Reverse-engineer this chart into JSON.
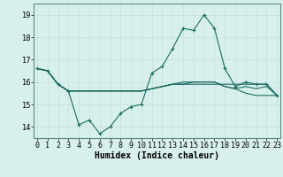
{
  "xlabel": "Humidex (Indice chaleur)",
  "bg_color": "#d8f0ec",
  "grid_color": "#c8e4e0",
  "line_color": "#1a6b60",
  "x_ticks": [
    0,
    1,
    2,
    3,
    4,
    5,
    6,
    7,
    8,
    9,
    10,
    11,
    12,
    13,
    14,
    15,
    16,
    17,
    18,
    19,
    20,
    21,
    22,
    23
  ],
  "y_ticks": [
    14,
    15,
    16,
    17,
    18,
    19
  ],
  "xlim": [
    -0.3,
    23.3
  ],
  "ylim": [
    13.5,
    19.5
  ],
  "series": [
    [
      16.6,
      16.5,
      15.9,
      15.6,
      14.1,
      14.3,
      13.7,
      14.0,
      14.6,
      14.9,
      15.0,
      16.4,
      16.7,
      17.5,
      18.4,
      18.3,
      19.0,
      18.4,
      16.6,
      15.8,
      16.0,
      15.9,
      15.9,
      15.4
    ],
    [
      16.6,
      16.5,
      15.9,
      15.6,
      15.6,
      15.6,
      15.6,
      15.6,
      15.6,
      15.6,
      15.6,
      15.7,
      15.8,
      15.9,
      15.9,
      15.9,
      15.9,
      15.9,
      15.9,
      15.9,
      15.9,
      15.9,
      15.9,
      15.4
    ],
    [
      16.6,
      16.5,
      15.9,
      15.6,
      15.6,
      15.6,
      15.6,
      15.6,
      15.6,
      15.6,
      15.6,
      15.7,
      15.8,
      15.9,
      15.9,
      16.0,
      16.0,
      16.0,
      15.8,
      15.7,
      15.8,
      15.7,
      15.8,
      15.4
    ],
    [
      16.6,
      16.5,
      15.9,
      15.6,
      15.6,
      15.6,
      15.6,
      15.6,
      15.6,
      15.6,
      15.6,
      15.7,
      15.8,
      15.9,
      16.0,
      16.0,
      16.0,
      16.0,
      15.8,
      15.7,
      15.5,
      15.4,
      15.4,
      15.4
    ]
  ],
  "xlabel_fontsize": 7,
  "tick_fontsize": 6,
  "ylabel_fontsize": 7
}
